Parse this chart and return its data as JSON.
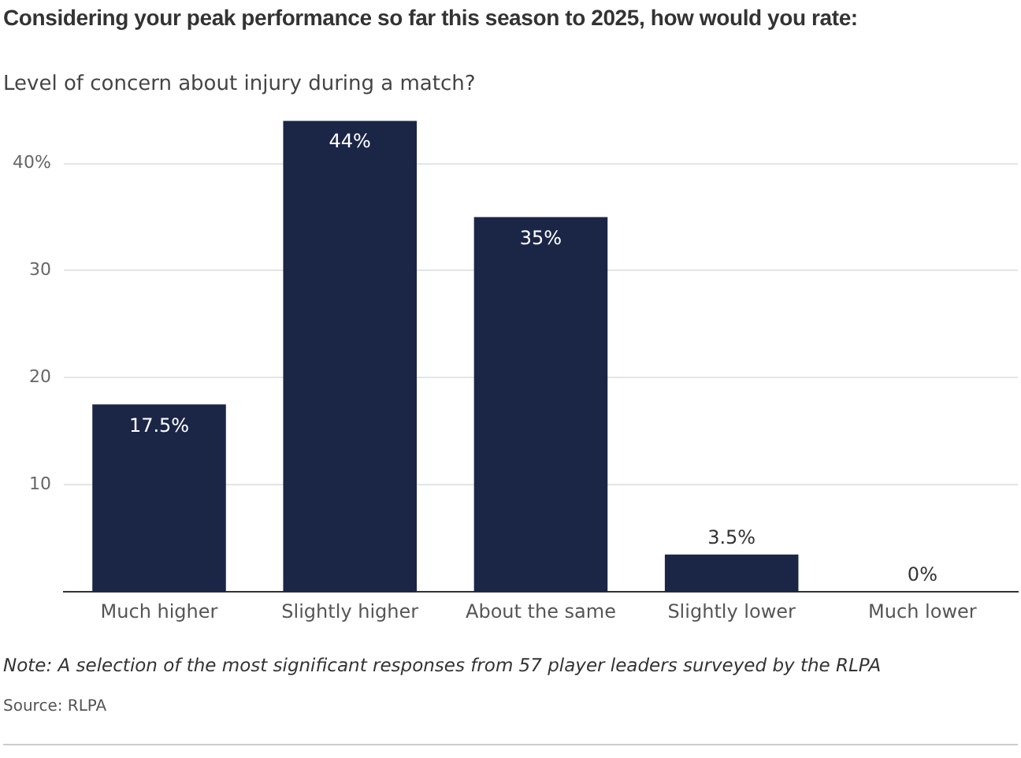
{
  "chart_data": {
    "type": "bar",
    "title": "Considering your peak performance so far this season to 2025, how would you rate:",
    "subtitle": "Level of concern about injury during a match?",
    "categories": [
      "Much higher",
      "Slightly higher",
      "About the same",
      "Slightly lower",
      "Much lower"
    ],
    "values": [
      17.5,
      44,
      35,
      3.5,
      0
    ],
    "value_labels": [
      "17.5%",
      "44%",
      "35%",
      "3.5%",
      "0%"
    ],
    "color": "#1b2646",
    "ylim": [
      0,
      44
    ],
    "yticks": [
      10,
      20,
      30,
      {
        "value": 40,
        "label": "40%"
      }
    ],
    "grid": "y",
    "annotations": [
      "Note: A selection of the most significant responses from 57 player leaders surveyed by the RLPA",
      "Source: RLPA"
    ]
  }
}
